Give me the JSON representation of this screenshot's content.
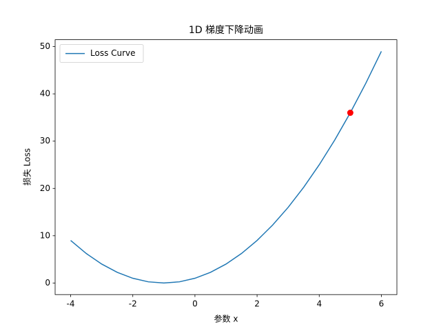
{
  "chart_data": {
    "type": "line",
    "title": "1D 梯度下降动画",
    "x_label": "参数 x",
    "y_label": "损失 Loss",
    "series": [
      {
        "name": "Loss Curve",
        "color": "#1f77b4",
        "x": [
          -4,
          -3.5,
          -3,
          -2.5,
          -2,
          -1.5,
          -1,
          -0.5,
          0,
          0.5,
          1,
          1.5,
          2,
          2.5,
          3,
          3.5,
          4,
          4.5,
          5,
          5.5,
          6
        ],
        "values": [
          9,
          6.25,
          4,
          2.25,
          1,
          0.25,
          0,
          0.25,
          1,
          2.25,
          4,
          6.25,
          9,
          12.25,
          16,
          20.25,
          25,
          30.25,
          36,
          42.25,
          49
        ]
      }
    ],
    "marker": {
      "x": 5,
      "y": 36,
      "color": "#ff0000"
    },
    "xlim": [
      -4.5,
      6.5
    ],
    "ylim": [
      -2.45,
      51.45
    ],
    "xticks": [
      -4,
      -2,
      0,
      2,
      4,
      6
    ],
    "yticks": [
      0,
      10,
      20,
      30,
      40,
      50
    ],
    "legend": "upper left"
  }
}
